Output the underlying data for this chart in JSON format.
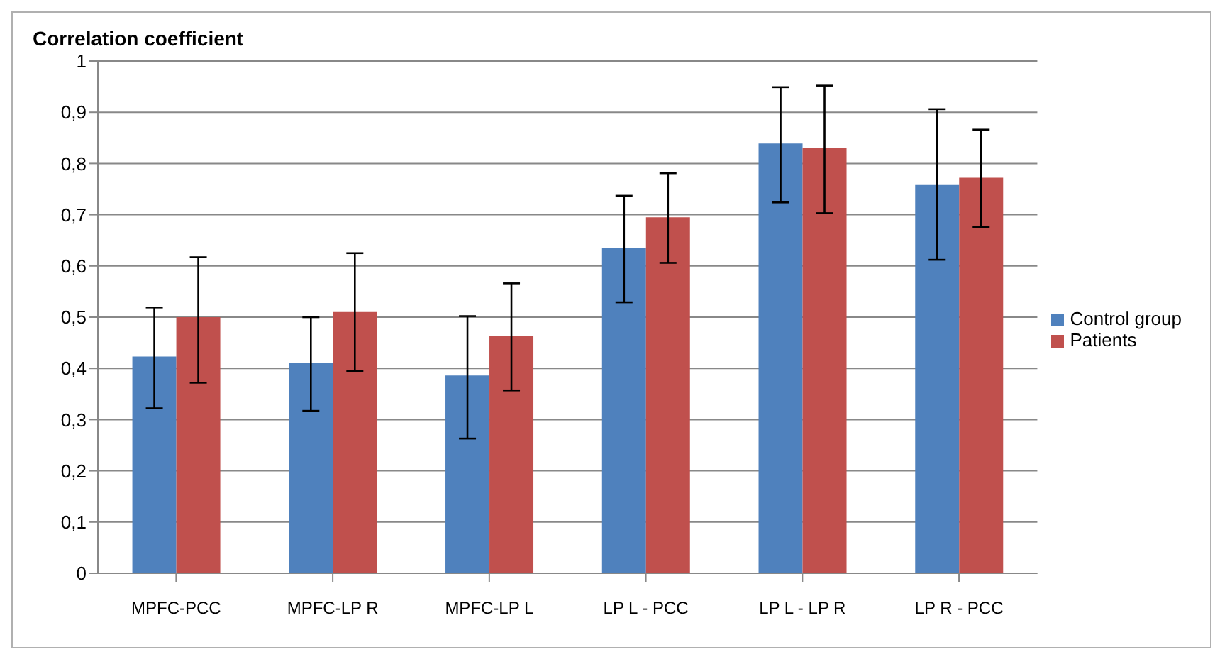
{
  "chart_data": {
    "type": "bar",
    "ylabel": "Correlation coefficient",
    "categories": [
      "MPFC-PCC",
      "MPFC-LP R",
      "MPFC-LP L",
      "LP L - PCC",
      "LP L - LP R",
      "LP R - PCC"
    ],
    "series": [
      {
        "name": "Control group",
        "color": "#4f81bd",
        "values": [
          0.423,
          0.41,
          0.386,
          0.635,
          0.839,
          0.758
        ],
        "errors": [
          [
            0.322,
            0.519
          ],
          [
            0.317,
            0.5
          ],
          [
            0.263,
            0.502
          ],
          [
            0.529,
            0.737
          ],
          [
            0.724,
            0.949
          ],
          [
            0.612,
            0.906
          ]
        ]
      },
      {
        "name": "Patients",
        "color": "#c0504d",
        "values": [
          0.5,
          0.51,
          0.463,
          0.695,
          0.83,
          0.772
        ],
        "errors": [
          [
            0.372,
            0.617
          ],
          [
            0.395,
            0.625
          ],
          [
            0.357,
            0.566
          ],
          [
            0.606,
            0.781
          ],
          [
            0.703,
            0.952
          ],
          [
            0.676,
            0.866
          ]
        ]
      }
    ],
    "ylim": [
      0,
      1
    ],
    "yticks": [
      {
        "value": 0,
        "label": "0"
      },
      {
        "value": 0.1,
        "label": "0,1"
      },
      {
        "value": 0.2,
        "label": "0,2"
      },
      {
        "value": 0.3,
        "label": "0,3"
      },
      {
        "value": 0.4,
        "label": "0,4"
      },
      {
        "value": 0.5,
        "label": "0,5"
      },
      {
        "value": 0.6,
        "label": "0,6"
      },
      {
        "value": 0.7,
        "label": "0,7"
      },
      {
        "value": 0.8,
        "label": "0,8"
      },
      {
        "value": 0.9,
        "label": "0,9"
      },
      {
        "value": 1,
        "label": "1"
      }
    ],
    "grid": "y",
    "legend": "right"
  }
}
